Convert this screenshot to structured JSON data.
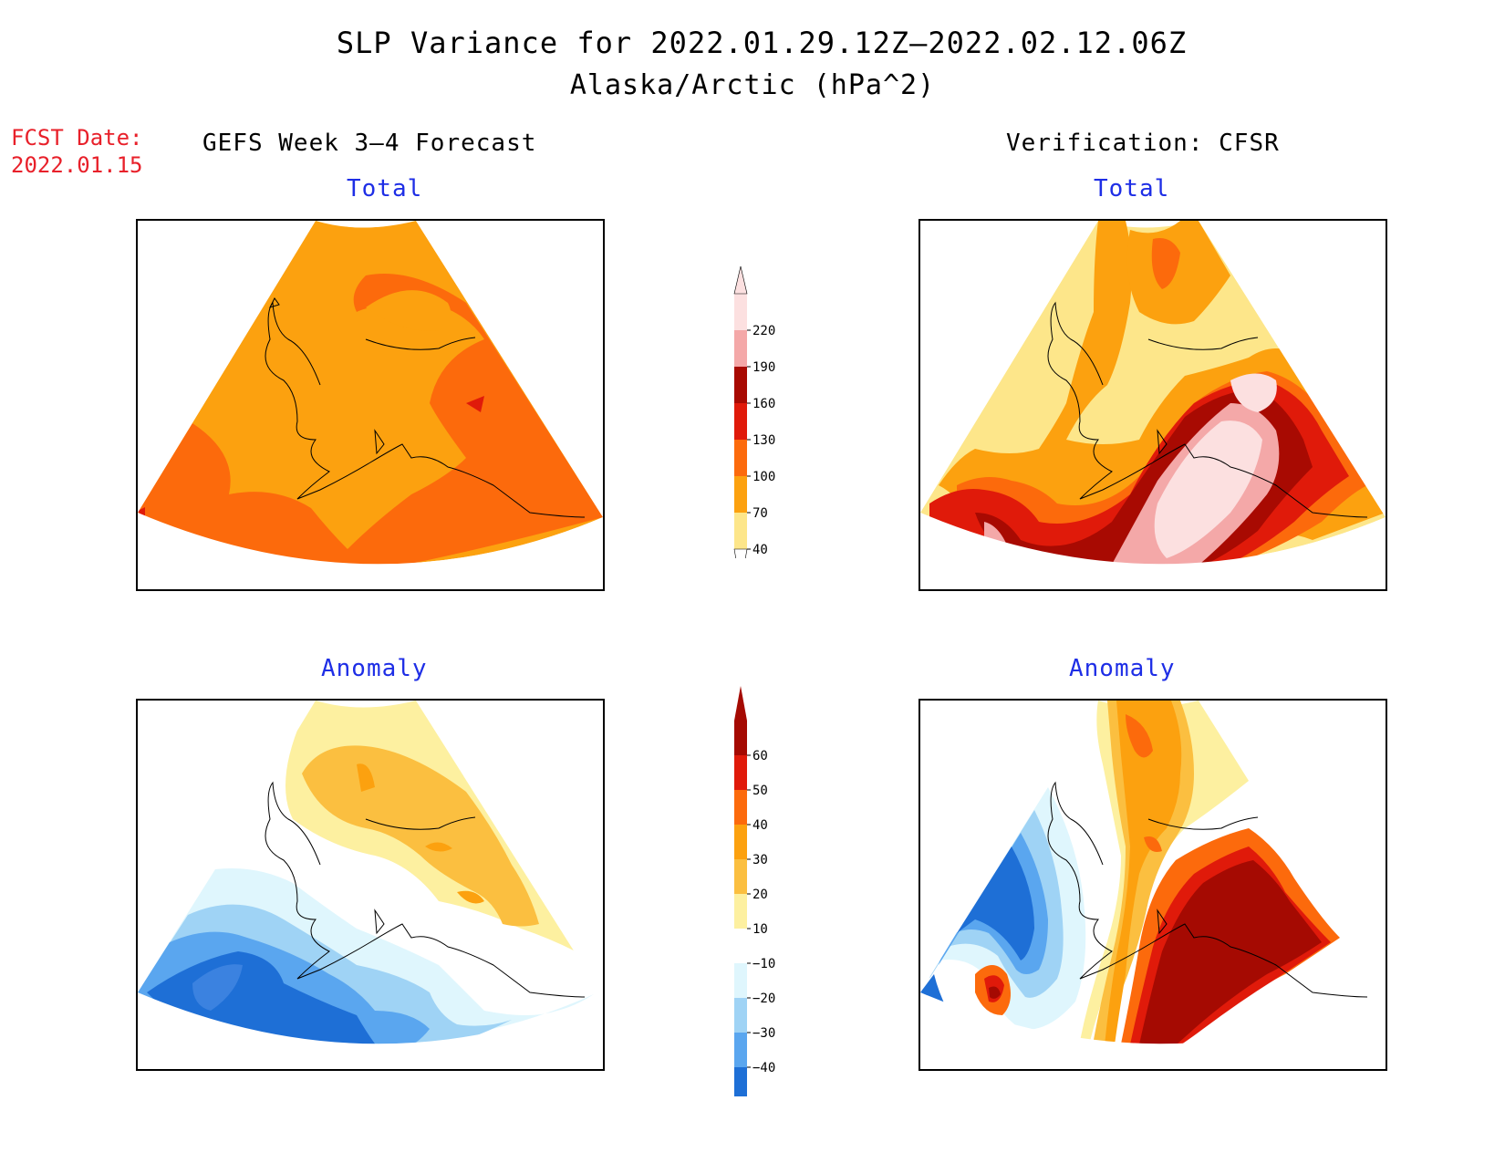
{
  "title": {
    "line1": "SLP Variance for 2022.01.29.12Z–2022.02.12.06Z",
    "line2": "Alaska/Arctic (hPa^2)"
  },
  "forecast_date": {
    "label": "FCST Date:",
    "value": "2022.01.15"
  },
  "columns": {
    "left": "GEFS Week 3–4 Forecast",
    "right": "Verification: CFSR"
  },
  "panels": {
    "total_label": "Total",
    "anomaly_label": "Anomaly"
  },
  "colorbars": {
    "total": {
      "levels": [
        "40",
        "70",
        "100",
        "130",
        "160",
        "190",
        "220"
      ],
      "colors": [
        "#fde68a",
        "#fca10f",
        "#fc6a0c",
        "#e01a0a",
        "#a80a02",
        "#f4a8a8",
        "#fce0e0"
      ]
    },
    "anomaly": {
      "levels": [
        "60",
        "50",
        "40",
        "30",
        "20",
        "10",
        "−10",
        "−20",
        "−30",
        "−40"
      ],
      "colors": [
        "#a50a02",
        "#e01a0a",
        "#fc6a0c",
        "#fca10f",
        "#fbbf40",
        "#fdf0a0",
        "#ffffff",
        "#dff6fd",
        "#9fd3f5",
        "#5aa6ef",
        "#1e6fd6"
      ]
    }
  },
  "colors": {
    "fcst_date": "#e8202a",
    "subtitle": "#1e2ee6"
  }
}
